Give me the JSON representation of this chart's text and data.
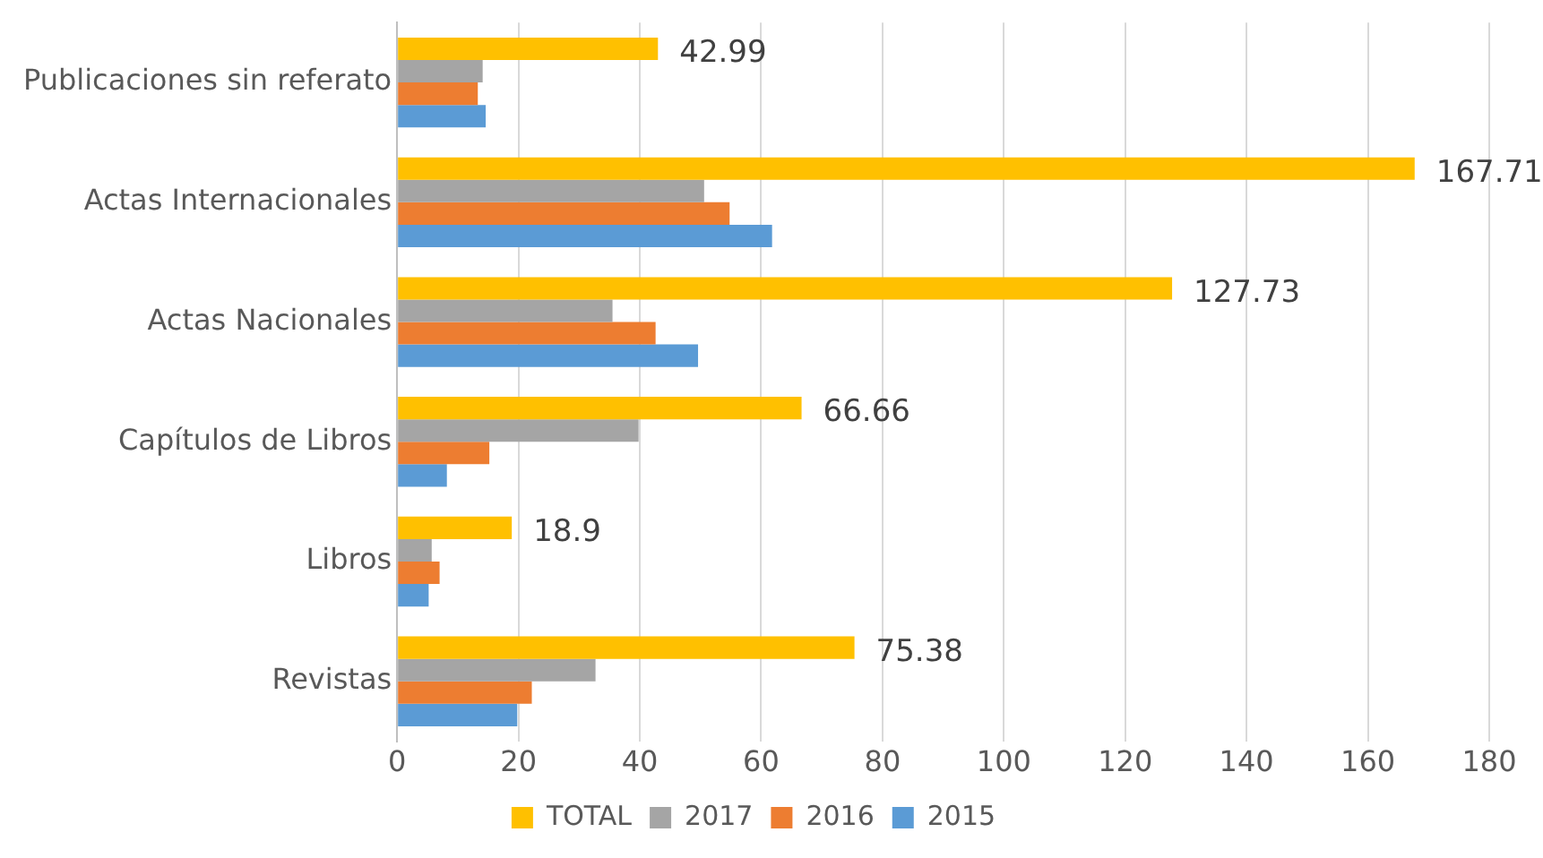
{
  "chart_data": {
    "type": "bar",
    "orientation": "horizontal",
    "categories": [
      "Publicaciones sin referato",
      "Actas Internacionales",
      "Actas Nacionales",
      "Capítulos de Libros",
      "Libros",
      "Revistas"
    ],
    "series": [
      {
        "name": "TOTAL",
        "color": "#ffc000",
        "values": [
          42.99,
          167.71,
          127.73,
          66.66,
          18.9,
          75.38
        ],
        "value_labels": [
          "42.99",
          "167.71",
          "127.73",
          "66.66",
          "18.9",
          "75.38"
        ]
      },
      {
        "name": "2017",
        "color": "#a5a5a5",
        "values": [
          14.1,
          50.6,
          35.5,
          39.8,
          5.7,
          32.7
        ]
      },
      {
        "name": "2016",
        "color": "#ed7d31",
        "values": [
          13.3,
          54.8,
          42.6,
          15.2,
          7.0,
          22.2
        ]
      },
      {
        "name": "2015",
        "color": "#5b9bd5",
        "values": [
          14.6,
          61.8,
          49.6,
          8.2,
          5.2,
          19.8
        ]
      }
    ],
    "xlim": [
      0,
      180
    ],
    "xticks": [
      0,
      20,
      40,
      60,
      80,
      100,
      120,
      140,
      160,
      180
    ],
    "grid": "x",
    "legend": "bottom"
  }
}
